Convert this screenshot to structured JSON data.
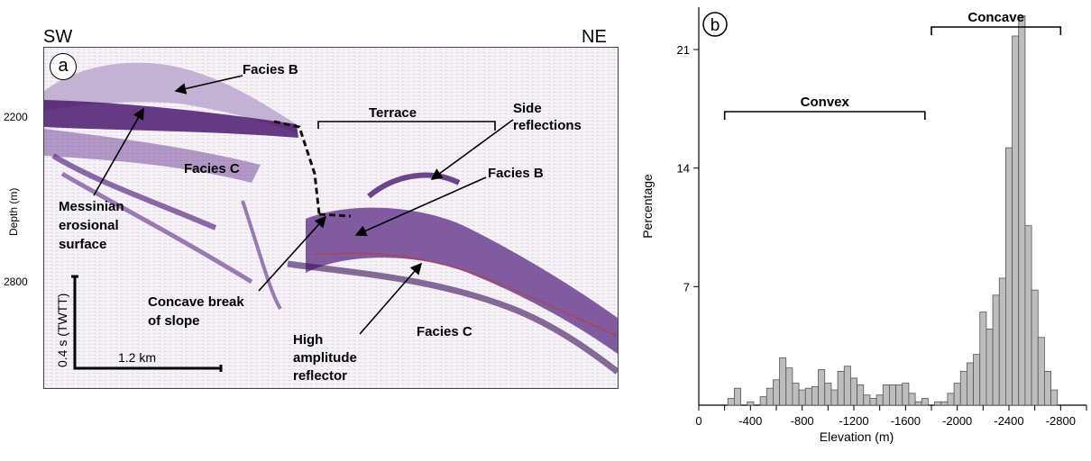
{
  "panel_a": {
    "letter": "a",
    "dir_left": "SW",
    "dir_right": "NE",
    "y_axis_label": "Depth (m)",
    "ticks": [
      "2200",
      "2800"
    ],
    "scale_vertical": "0.4 s (TWTT)",
    "scale_horizontal": "1.2 km",
    "labels": {
      "facies_b_top": "Facies B",
      "terrace": "Terrace",
      "side_reflections": "Side\nreflections",
      "facies_b_mid": "Facies B",
      "facies_c_left": "Facies C",
      "messinian": "Messinian\nerosional\nsurface",
      "concave_break": "Concave break\nof slope",
      "high_amplitude": "High\namplitude\nreflector",
      "facies_c_right": "Facies C"
    },
    "colors": {
      "reflector": "#4b1a6e",
      "accent": "#c0392b"
    }
  },
  "chart_data": {
    "type": "bar",
    "panel_letter": "b",
    "xlabel": "Elevation (m)",
    "ylabel": "Percentage",
    "xlim": [
      0,
      -3000
    ],
    "ylim": [
      0,
      23.5
    ],
    "xticks": [
      0,
      -400,
      -800,
      -1200,
      -1600,
      -2000,
      -2400,
      -2800
    ],
    "yticks": [
      7,
      14,
      21
    ],
    "bin_width": 50,
    "bars": [
      {
        "x": -250,
        "v": 0.4
      },
      {
        "x": -300,
        "v": 1.0
      },
      {
        "x": -400,
        "v": 0.2
      },
      {
        "x": -500,
        "v": 0.5
      },
      {
        "x": -550,
        "v": 1.0
      },
      {
        "x": -600,
        "v": 1.5
      },
      {
        "x": -650,
        "v": 2.8
      },
      {
        "x": -700,
        "v": 2.2
      },
      {
        "x": -750,
        "v": 1.3
      },
      {
        "x": -800,
        "v": 0.9
      },
      {
        "x": -850,
        "v": 1.0
      },
      {
        "x": -900,
        "v": 1.1
      },
      {
        "x": -950,
        "v": 2.1
      },
      {
        "x": -1000,
        "v": 1.3
      },
      {
        "x": -1050,
        "v": 0.9
      },
      {
        "x": -1100,
        "v": 2.0
      },
      {
        "x": -1150,
        "v": 2.3
      },
      {
        "x": -1200,
        "v": 1.6
      },
      {
        "x": -1250,
        "v": 1.2
      },
      {
        "x": -1300,
        "v": 0.6
      },
      {
        "x": -1350,
        "v": 0.4
      },
      {
        "x": -1400,
        "v": 0.6
      },
      {
        "x": -1450,
        "v": 1.2
      },
      {
        "x": -1500,
        "v": 1.2
      },
      {
        "x": -1550,
        "v": 1.2
      },
      {
        "x": -1600,
        "v": 1.3
      },
      {
        "x": -1650,
        "v": 0.7
      },
      {
        "x": -1700,
        "v": 0.2
      },
      {
        "x": -1750,
        "v": 0.4
      },
      {
        "x": -1850,
        "v": 0.2
      },
      {
        "x": -1900,
        "v": 0.2
      },
      {
        "x": -1950,
        "v": 0.7
      },
      {
        "x": -2000,
        "v": 1.3
      },
      {
        "x": -2050,
        "v": 2.0
      },
      {
        "x": -2100,
        "v": 2.5
      },
      {
        "x": -2150,
        "v": 3.0
      },
      {
        "x": -2200,
        "v": 5.5
      },
      {
        "x": -2250,
        "v": 4.5
      },
      {
        "x": -2300,
        "v": 6.5
      },
      {
        "x": -2350,
        "v": 7.5
      },
      {
        "x": -2400,
        "v": 15.2
      },
      {
        "x": -2450,
        "v": 21.8
      },
      {
        "x": -2500,
        "v": 23.0
      },
      {
        "x": -2550,
        "v": 10.6
      },
      {
        "x": -2600,
        "v": 6.8
      },
      {
        "x": -2650,
        "v": 4.0
      },
      {
        "x": -2700,
        "v": 2.0
      },
      {
        "x": -2750,
        "v": 0.9
      }
    ],
    "bar_color": "#bdbdbd",
    "annotations": {
      "convex": {
        "label": "Convex",
        "from": -200,
        "to": -1750
      },
      "concave": {
        "label": "Concave",
        "from": -1800,
        "to": -2800
      }
    }
  }
}
